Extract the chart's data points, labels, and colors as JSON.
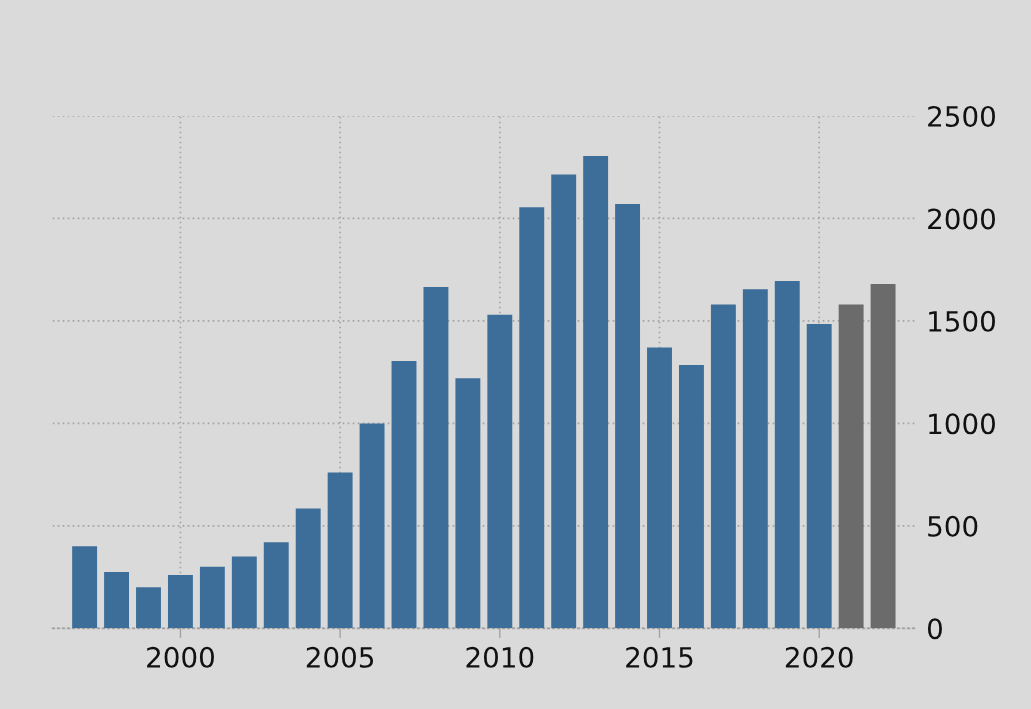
{
  "chart_data": {
    "type": "bar",
    "x": [
      1997,
      1998,
      1999,
      2000,
      2001,
      2002,
      2003,
      2004,
      2005,
      2006,
      2007,
      2008,
      2009,
      2010,
      2011,
      2012,
      2013,
      2014,
      2015,
      2016,
      2017,
      2018,
      2019,
      2020,
      2021,
      2022
    ],
    "values": [
      400,
      275,
      200,
      260,
      300,
      350,
      420,
      585,
      760,
      1000,
      1305,
      1665,
      1220,
      1530,
      2055,
      2215,
      2305,
      2070,
      1370,
      1285,
      1580,
      1655,
      1695,
      1485,
      1580,
      1680
    ],
    "colors": [
      "#3d6e99",
      "#3d6e99",
      "#3d6e99",
      "#3d6e99",
      "#3d6e99",
      "#3d6e99",
      "#3d6e99",
      "#3d6e99",
      "#3d6e99",
      "#3d6e99",
      "#3d6e99",
      "#3d6e99",
      "#3d6e99",
      "#3d6e99",
      "#3d6e99",
      "#3d6e99",
      "#3d6e99",
      "#3d6e99",
      "#3d6e99",
      "#3d6e99",
      "#3d6e99",
      "#3d6e99",
      "#3d6e99",
      "#3d6e99",
      "#6b6b6b",
      "#6b6b6b"
    ],
    "xlim": [
      1996,
      2023
    ],
    "ylim": [
      0,
      2500
    ],
    "xticks": [
      2000,
      2005,
      2010,
      2015,
      2020
    ],
    "yticks": [
      0,
      500,
      1000,
      1500,
      2000,
      2500
    ],
    "grid": true
  }
}
